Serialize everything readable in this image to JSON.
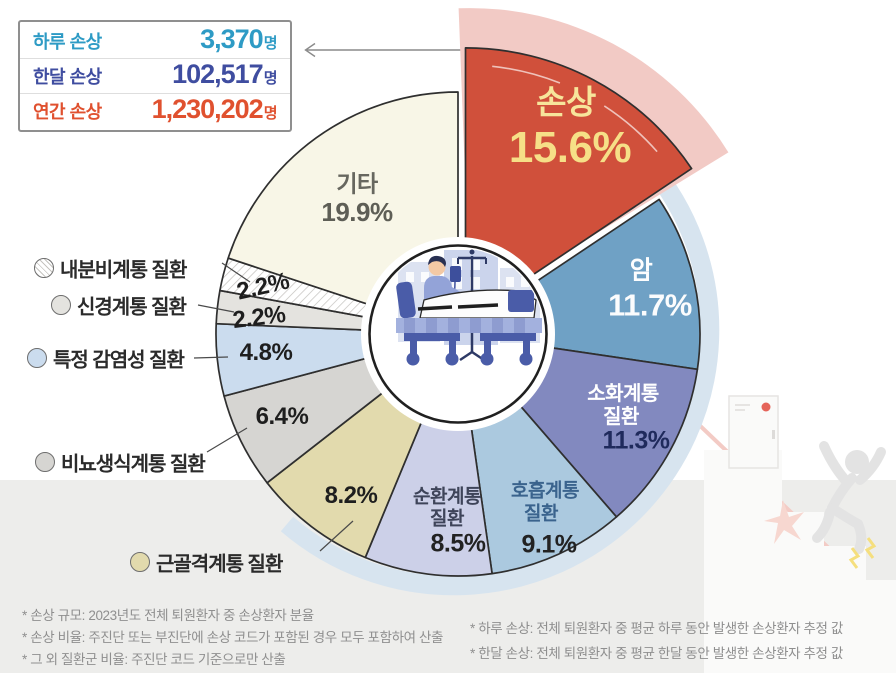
{
  "stats_box": {
    "rows": [
      {
        "id": "daily",
        "label": "하루 손상",
        "value": "3,370",
        "unit": "명",
        "color": "#2E9BC5"
      },
      {
        "id": "monthly",
        "label": "한달 손상",
        "value": "102,517",
        "unit": "명",
        "color": "#3F4DA0"
      },
      {
        "id": "yearly",
        "label": "연간 손상",
        "value": "1,230,202",
        "unit": "명",
        "color": "#E0512F"
      }
    ]
  },
  "chart_data": {
    "type": "pie",
    "unit": "%",
    "start_angle": "top",
    "direction": "clockwise",
    "center_illustration": "patient-in-hospital-bed",
    "slices": [
      {
        "id": "sonsang",
        "label": "손상",
        "value": 15.6,
        "display": "15.6%",
        "color": "#D0503B",
        "emphasized": true,
        "halo_color": "#F2CAC5"
      },
      {
        "id": "am",
        "label": "암",
        "value": 11.7,
        "display": "11.7%",
        "color": "#6FA1C5"
      },
      {
        "id": "sohwa",
        "label": "소화계통 질환",
        "lines": [
          "소화계통",
          "질환"
        ],
        "value": 11.3,
        "display": "11.3%",
        "color": "#8289BF"
      },
      {
        "id": "hoheup",
        "label": "호흡계통 질환",
        "lines": [
          "호흡계통",
          "질환"
        ],
        "value": 9.1,
        "display": "9.1%",
        "color": "#ABC9DF"
      },
      {
        "id": "sunhwan",
        "label": "순환계통 질환",
        "lines": [
          "순환계통",
          "질환"
        ],
        "value": 8.5,
        "display": "8.5%",
        "color": "#CCD0E8"
      },
      {
        "id": "geungolgyeok",
        "label": "근골격계통 질환",
        "value": 8.2,
        "display": "8.2%",
        "color": "#E2DAAD"
      },
      {
        "id": "binyo",
        "label": "비뇨생식계통 질환",
        "value": 6.4,
        "display": "6.4%",
        "color": "#D6D5D2"
      },
      {
        "id": "teukjeong",
        "label": "특정 감염성 질환",
        "value": 4.8,
        "display": "4.8%",
        "color": "#CBDCEE"
      },
      {
        "id": "singyeong",
        "label": "신경계통 질환",
        "value": 2.2,
        "display": "2.2%",
        "color": "#E4E3DF"
      },
      {
        "id": "naebunbi",
        "label": "내분비계통 질환",
        "value": 2.2,
        "display": "2.2%",
        "color": "hatch"
      },
      {
        "id": "gita",
        "label": "기타",
        "value": 19.9,
        "display": "19.9%",
        "color": "#F8F6E7"
      }
    ]
  },
  "legend": [
    {
      "id": "naebunbi",
      "label": "내분비계통 질환",
      "color": "hatch"
    },
    {
      "id": "singyeong",
      "label": "신경계통 질환",
      "color": "#E4E3DF"
    },
    {
      "id": "teukjeong",
      "label": "특정 감염성 질환",
      "color": "#CBDCEE"
    },
    {
      "id": "binyo",
      "label": "비뇨생식계통 질환",
      "color": "#D6D5D2"
    },
    {
      "id": "geungolgyeok",
      "label": "근골격계통 질환",
      "color": "#E2DAAD"
    }
  ],
  "footnotes": {
    "left": [
      "* 손상 규모: 2023년도 전체 퇴원환자 중 손상환자 분율",
      "* 손상 비율: 주진단 또는 부진단에 손상 코드가 포함된 경우 모두 포함하여 산출",
      "* 그 외 질환군 비율: 주진단 코드 기준으로만 산출"
    ],
    "right": [
      "* 하루 손상: 전체 퇴원환자 중 평균 하루 동안 발생한 손상환자 추정 값",
      "* 한달 손상: 전체 퇴원환자 중 평균 한달 동안 발생한 손상환자 추정 값"
    ]
  }
}
